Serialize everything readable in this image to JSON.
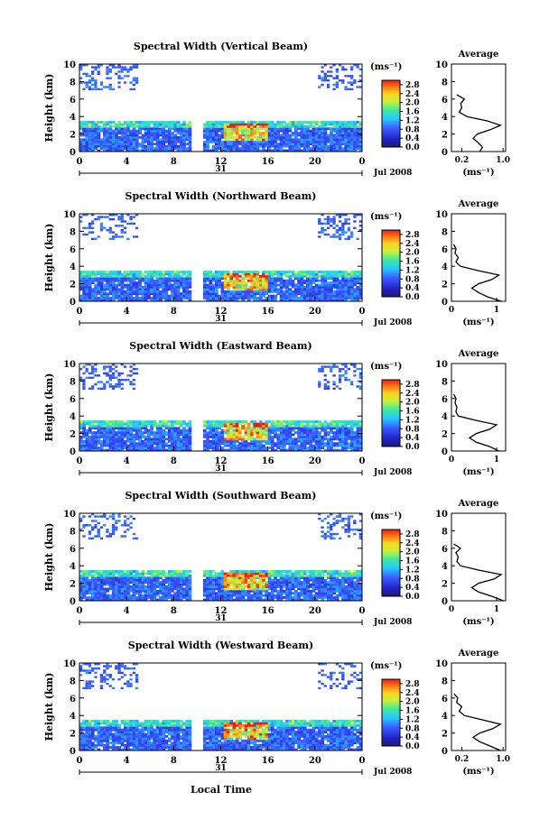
{
  "figure": {
    "xlabel": "Local Time",
    "date_label": "Jul 2008",
    "day_label": "31",
    "unit_label": "(ms⁻¹)",
    "avg_title": "Average",
    "ylabel": "Height (km)"
  },
  "chart_data": [
    {
      "type": "heatmap",
      "title": "Spectral Width (Vertical Beam)",
      "xlabel": "Local Time",
      "ylabel": "Height (km)",
      "x_range": [
        0,
        24
      ],
      "x_ticks": [
        "0",
        "4",
        "8",
        "12",
        "16",
        "20",
        "0"
      ],
      "ylim": [
        0,
        10
      ],
      "y_ticks": [
        "0",
        "2",
        "4",
        "6",
        "8",
        "10"
      ],
      "colorbar": {
        "label": "(ms⁻¹)",
        "range": [
          0,
          3.0
        ],
        "ticks": [
          "0.0",
          "0.4",
          "0.8",
          "1.2",
          "1.6",
          "2.0",
          "2.4",
          "2.8"
        ]
      },
      "data_gap_hours": [
        9.5,
        10.3
      ],
      "average_profile": {
        "title": "Average",
        "xlabel": "(ms⁻¹)",
        "x_ticks": [
          "0.2",
          "1.0"
        ],
        "xlim": [
          0,
          1.05
        ],
        "height_km": [
          0,
          0.5,
          1,
          1.5,
          2,
          2.5,
          3,
          3.5,
          4,
          4.5,
          5,
          5.5,
          6,
          6.5
        ],
        "width_ms": [
          0.55,
          0.6,
          0.52,
          0.42,
          0.5,
          0.75,
          0.95,
          0.7,
          0.3,
          0.15,
          0.2,
          0.18,
          0.25,
          0.1
        ]
      }
    },
    {
      "type": "heatmap",
      "title": "Spectral Width (Northward Beam)",
      "xlabel": "Local Time",
      "ylabel": "Height (km)",
      "x_range": [
        0,
        24
      ],
      "x_ticks": [
        "0",
        "4",
        "8",
        "12",
        "16",
        "20",
        "0"
      ],
      "ylim": [
        0,
        10
      ],
      "y_ticks": [
        "0",
        "2",
        "4",
        "6",
        "8",
        "10"
      ],
      "colorbar": {
        "label": "(ms⁻¹)",
        "range": [
          0,
          3.0
        ],
        "ticks": [
          "0.0",
          "0.4",
          "0.8",
          "1.2",
          "1.6",
          "2.0",
          "2.4",
          "2.8"
        ]
      },
      "data_gap_hours": [
        9.5,
        10.3
      ],
      "average_profile": {
        "title": "Average",
        "xlabel": "(ms⁻¹)",
        "x_ticks": [
          "0",
          "1"
        ],
        "xlim": [
          0,
          1.2
        ],
        "height_km": [
          0,
          0.5,
          1,
          1.5,
          2,
          2.5,
          3,
          3.5,
          4,
          4.5,
          5,
          5.5,
          6,
          6.5
        ],
        "width_ms": [
          1.1,
          0.8,
          0.6,
          0.45,
          0.6,
          0.9,
          1.05,
          0.6,
          0.2,
          0.1,
          0.15,
          0.08,
          0.1,
          0.05
        ]
      }
    },
    {
      "type": "heatmap",
      "title": "Spectral Width (Eastward Beam)",
      "xlabel": "Local Time",
      "ylabel": "Height (km)",
      "x_range": [
        0,
        24
      ],
      "x_ticks": [
        "0",
        "4",
        "8",
        "12",
        "16",
        "20",
        "0"
      ],
      "ylim": [
        0,
        10
      ],
      "y_ticks": [
        "0",
        "2",
        "4",
        "6",
        "8",
        "10"
      ],
      "colorbar": {
        "label": "(ms⁻¹)",
        "range": [
          0,
          3.0
        ],
        "ticks": [
          "0.0",
          "0.4",
          "0.8",
          "1.2",
          "1.6",
          "2.0",
          "2.4",
          "2.8"
        ]
      },
      "data_gap_hours": [
        9.5,
        10.3
      ],
      "average_profile": {
        "title": "Average",
        "xlabel": "(ms⁻¹)",
        "x_ticks": [
          "0",
          "1"
        ],
        "xlim": [
          0,
          1.2
        ],
        "height_km": [
          0,
          0.5,
          1,
          1.5,
          2,
          2.5,
          3,
          3.5,
          4,
          4.5,
          5,
          5.5,
          6,
          6.5
        ],
        "width_ms": [
          1.05,
          0.85,
          0.55,
          0.4,
          0.55,
          0.85,
          1.0,
          0.55,
          0.15,
          0.1,
          0.12,
          0.08,
          0.1,
          0.05
        ]
      }
    },
    {
      "type": "heatmap",
      "title": "Spectral Width (Southward Beam)",
      "xlabel": "Local Time",
      "ylabel": "Height (km)",
      "x_range": [
        0,
        24
      ],
      "x_ticks": [
        "0",
        "4",
        "8",
        "12",
        "16",
        "20",
        "0"
      ],
      "ylim": [
        0,
        10
      ],
      "y_ticks": [
        "0",
        "2",
        "4",
        "6",
        "8",
        "10"
      ],
      "colorbar": {
        "label": "(ms⁻¹)",
        "range": [
          0,
          3.0
        ],
        "ticks": [
          "0.0",
          "0.4",
          "0.8",
          "1.2",
          "1.6",
          "2.0",
          "2.4",
          "2.8"
        ]
      },
      "data_gap_hours": [
        9.5,
        10.3
      ],
      "average_profile": {
        "title": "Average",
        "xlabel": "(ms⁻¹)",
        "x_ticks": [
          "0",
          "1"
        ],
        "xlim": [
          0,
          1.2
        ],
        "height_km": [
          0,
          0.5,
          1,
          1.5,
          2,
          2.5,
          3,
          3.5,
          4,
          4.5,
          5,
          5.5,
          6,
          6.5
        ],
        "width_ms": [
          1.15,
          0.9,
          0.6,
          0.45,
          0.6,
          0.95,
          1.1,
          0.6,
          0.2,
          0.12,
          0.15,
          0.1,
          0.2,
          0.05
        ]
      }
    },
    {
      "type": "heatmap",
      "title": "Spectral Width (Westward Beam)",
      "xlabel": "Local Time",
      "ylabel": "Height (km)",
      "x_range": [
        0,
        24
      ],
      "x_ticks": [
        "0",
        "4",
        "8",
        "12",
        "16",
        "20",
        "0"
      ],
      "ylim": [
        0,
        10
      ],
      "y_ticks": [
        "0",
        "2",
        "4",
        "6",
        "8",
        "10"
      ],
      "colorbar": {
        "label": "(ms⁻¹)",
        "range": [
          0,
          3.0
        ],
        "ticks": [
          "0.0",
          "0.4",
          "0.8",
          "1.2",
          "1.6",
          "2.0",
          "2.4",
          "2.8"
        ]
      },
      "data_gap_hours": [
        9.5,
        10.3
      ],
      "average_profile": {
        "title": "Average",
        "xlabel": "(ms⁻¹)",
        "x_ticks": [
          "0.2",
          "1.0"
        ],
        "xlim": [
          0,
          1.05
        ],
        "height_km": [
          0,
          0.5,
          1,
          1.5,
          2,
          2.5,
          3,
          3.5,
          4,
          4.5,
          5,
          5.5,
          6,
          6.5
        ],
        "width_ms": [
          0.95,
          0.75,
          0.55,
          0.42,
          0.55,
          0.8,
          0.95,
          0.6,
          0.25,
          0.15,
          0.2,
          0.1,
          0.12,
          0.05
        ]
      }
    }
  ]
}
